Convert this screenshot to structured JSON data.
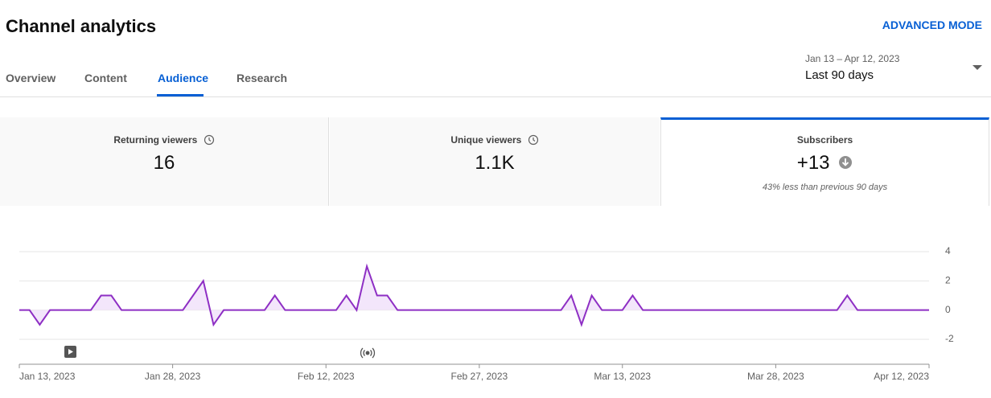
{
  "header": {
    "title": "Channel analytics",
    "action": "ADVANCED MODE"
  },
  "tabs": [
    "Overview",
    "Content",
    "Audience",
    "Research"
  ],
  "date_range": {
    "range": "Jan 13 – Apr 12, 2023",
    "preset": "Last 90 days"
  },
  "metrics": [
    {
      "label": "Returning viewers",
      "value": "16"
    },
    {
      "label": "Unique viewers",
      "value": "1.1K"
    },
    {
      "label": "Subscribers",
      "value": "+13",
      "note": "43% less than previous 90 days"
    }
  ],
  "chart_data": {
    "type": "area",
    "color": "#8e2fc4",
    "fill": "#f3e6fb",
    "grid": true,
    "x": [
      "2023-01-13",
      "2023-01-14",
      "2023-01-15",
      "2023-01-16",
      "2023-01-17",
      "2023-01-18",
      "2023-01-19",
      "2023-01-20",
      "2023-01-21",
      "2023-01-22",
      "2023-01-23",
      "2023-01-24",
      "2023-01-25",
      "2023-01-26",
      "2023-01-27",
      "2023-01-28",
      "2023-01-29",
      "2023-01-30",
      "2023-01-31",
      "2023-02-01",
      "2023-02-02",
      "2023-02-03",
      "2023-02-04",
      "2023-02-05",
      "2023-02-06",
      "2023-02-07",
      "2023-02-08",
      "2023-02-09",
      "2023-02-10",
      "2023-02-11",
      "2023-02-12",
      "2023-02-13",
      "2023-02-14",
      "2023-02-15",
      "2023-02-16",
      "2023-02-17",
      "2023-02-18",
      "2023-02-19",
      "2023-02-20",
      "2023-02-21",
      "2023-02-22",
      "2023-02-23",
      "2023-02-24",
      "2023-02-25",
      "2023-02-26",
      "2023-02-27",
      "2023-02-28",
      "2023-03-01",
      "2023-03-02",
      "2023-03-03",
      "2023-03-04",
      "2023-03-05",
      "2023-03-06",
      "2023-03-07",
      "2023-03-08",
      "2023-03-09",
      "2023-03-10",
      "2023-03-11",
      "2023-03-12",
      "2023-03-13",
      "2023-03-14",
      "2023-03-15",
      "2023-03-16",
      "2023-03-17",
      "2023-03-18",
      "2023-03-19",
      "2023-03-20",
      "2023-03-21",
      "2023-03-22",
      "2023-03-23",
      "2023-03-24",
      "2023-03-25",
      "2023-03-26",
      "2023-03-27",
      "2023-03-28",
      "2023-03-29",
      "2023-03-30",
      "2023-03-31",
      "2023-04-01",
      "2023-04-02",
      "2023-04-03",
      "2023-04-04",
      "2023-04-05",
      "2023-04-06",
      "2023-04-07",
      "2023-04-08",
      "2023-04-09",
      "2023-04-10",
      "2023-04-11",
      "2023-04-12"
    ],
    "values": [
      0,
      0,
      -1,
      0,
      0,
      0,
      0,
      0,
      1,
      1,
      0,
      0,
      0,
      0,
      0,
      0,
      0,
      1,
      2,
      -1,
      0,
      0,
      0,
      0,
      0,
      1,
      0,
      0,
      0,
      0,
      0,
      0,
      1,
      0,
      3,
      1,
      1,
      0,
      0,
      0,
      0,
      0,
      0,
      0,
      0,
      0,
      0,
      0,
      0,
      0,
      0,
      0,
      0,
      0,
      1,
      -1,
      1,
      0,
      0,
      0,
      1,
      0,
      0,
      0,
      0,
      0,
      0,
      0,
      0,
      0,
      0,
      0,
      0,
      0,
      0,
      0,
      0,
      0,
      0,
      0,
      0,
      1,
      0,
      0,
      0,
      0,
      0,
      0,
      0,
      0
    ],
    "xlim": [
      "2023-01-13",
      "2023-04-12"
    ],
    "xticks": [
      {
        "value": "2023-01-13",
        "label": "Jan 13, 2023"
      },
      {
        "value": "2023-01-28",
        "label": "Jan 28, 2023"
      },
      {
        "value": "2023-02-12",
        "label": "Feb 12, 2023"
      },
      {
        "value": "2023-02-27",
        "label": "Feb 27, 2023"
      },
      {
        "value": "2023-03-13",
        "label": "Mar 13, 2023"
      },
      {
        "value": "2023-03-28",
        "label": "Mar 28, 2023"
      },
      {
        "value": "2023-04-12",
        "label": "Apr 12, 2023"
      }
    ],
    "ylim": [
      -2,
      4
    ],
    "yticks": [
      -2,
      0,
      2,
      4
    ]
  }
}
